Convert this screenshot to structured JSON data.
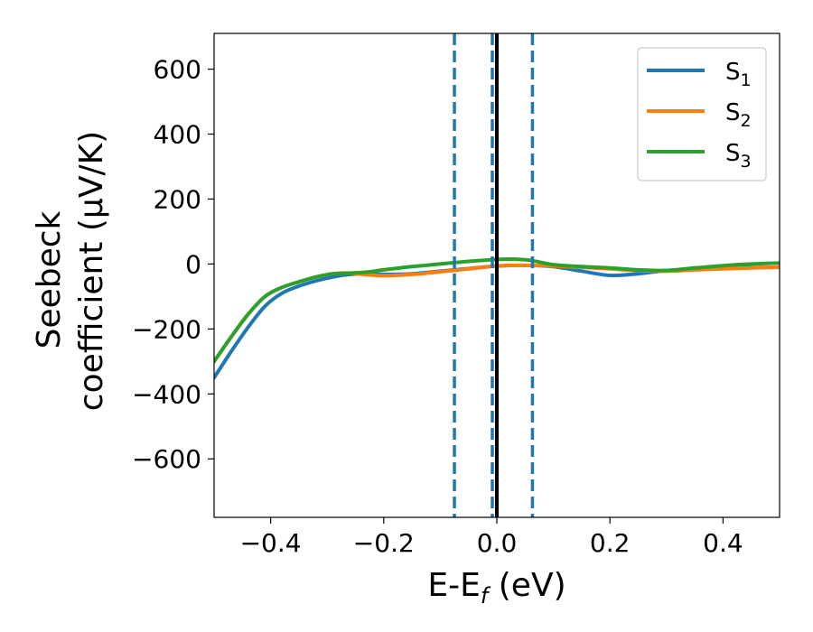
{
  "chart_data": {
    "type": "line",
    "xlabel": "E-E",
    "xlabel_sub": "f",
    "xlabel_unit": " (eV)",
    "ylabel_line1": "Seebeck",
    "ylabel_line2": "coefficient  (μV/K)",
    "xlim": [
      -0.5,
      0.5
    ],
    "ylim": [
      -780,
      710
    ],
    "xticks": [
      -0.4,
      -0.2,
      0.0,
      0.2,
      0.4
    ],
    "xtick_labels": [
      "−0.4",
      "−0.2",
      "0.0",
      "0.2",
      "0.4"
    ],
    "yticks": [
      600,
      400,
      200,
      0,
      -200,
      -400,
      -600
    ],
    "ytick_labels": [
      "600",
      "400",
      "200",
      "0",
      "−200",
      "−400",
      "−600"
    ],
    "grid": false,
    "legend_position": "top-right",
    "series": [
      {
        "name": "S",
        "sub": "1",
        "color": "#1f77b4",
        "x": [
          -0.5,
          -0.47,
          -0.44,
          -0.41,
          -0.38,
          -0.35,
          -0.32,
          -0.29,
          -0.26,
          -0.23,
          -0.2,
          -0.15,
          -0.1,
          -0.05,
          0.0,
          0.05,
          0.1,
          0.15,
          0.2,
          0.25,
          0.3,
          0.35,
          0.4,
          0.45,
          0.5
        ],
        "y": [
          -350,
          -270,
          -195,
          -130,
          -90,
          -68,
          -52,
          -40,
          -32,
          -30,
          -32,
          -30,
          -22,
          -14,
          -6,
          -4,
          -8,
          -22,
          -35,
          -30,
          -20,
          -16,
          -13,
          -11,
          -10
        ]
      },
      {
        "name": "S",
        "sub": "2",
        "color": "#ff7f0e",
        "x": [
          -0.5,
          -0.47,
          -0.44,
          -0.41,
          -0.38,
          -0.35,
          -0.32,
          -0.29,
          -0.26,
          -0.23,
          -0.2,
          -0.15,
          -0.1,
          -0.05,
          0.0,
          0.05,
          0.1,
          0.15,
          0.2,
          0.25,
          0.3,
          0.35,
          0.4,
          0.45,
          0.5
        ],
        "y": [
          -300,
          -225,
          -155,
          -100,
          -72,
          -55,
          -40,
          -30,
          -28,
          -33,
          -36,
          -32,
          -24,
          -15,
          -6,
          -4,
          -6,
          -10,
          -15,
          -20,
          -22,
          -18,
          -15,
          -12,
          -10
        ]
      },
      {
        "name": "S",
        "sub": "3",
        "color": "#2ca02c",
        "x": [
          -0.5,
          -0.47,
          -0.44,
          -0.41,
          -0.38,
          -0.35,
          -0.32,
          -0.29,
          -0.26,
          -0.23,
          -0.2,
          -0.15,
          -0.1,
          -0.05,
          0.0,
          0.03,
          0.06,
          0.1,
          0.15,
          0.2,
          0.25,
          0.3,
          0.35,
          0.4,
          0.45,
          0.5
        ],
        "y": [
          -300,
          -225,
          -155,
          -100,
          -72,
          -55,
          -40,
          -30,
          -28,
          -25,
          -18,
          -8,
          0,
          8,
          14,
          15,
          11,
          -2,
          -8,
          -12,
          -18,
          -20,
          -12,
          -5,
          0,
          3
        ]
      }
    ],
    "vlines": [
      {
        "x": -0.075,
        "style": "dashed",
        "color": "#1f77b4"
      },
      {
        "x": -0.008,
        "style": "dashed",
        "color": "#1f77b4"
      },
      {
        "x": 0.0,
        "style": "solid",
        "color": "#000000"
      },
      {
        "x": 0.063,
        "style": "dashed",
        "color": "#1f77b4"
      }
    ]
  }
}
